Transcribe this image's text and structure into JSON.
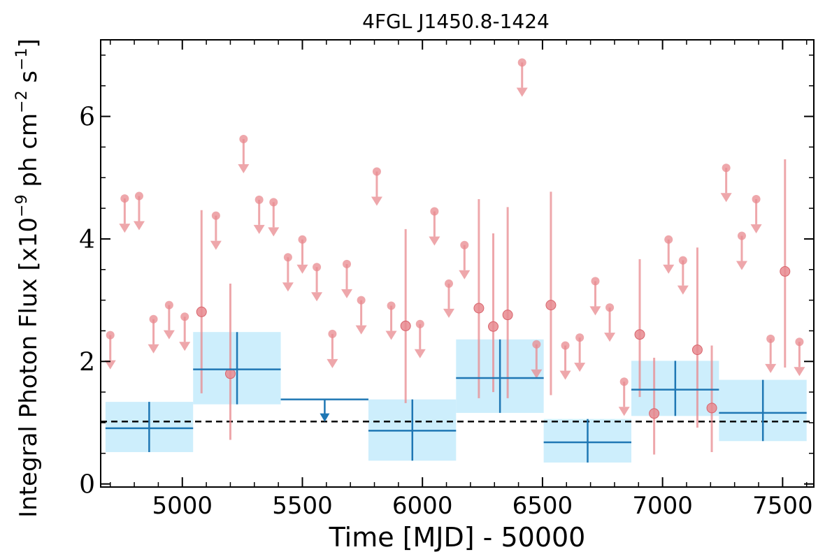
{
  "chart_data": {
    "type": "scatter",
    "title": "4FGL J1450.8-1424",
    "xlabel": "Time [MJD] - 50000",
    "ylabel": {
      "prefix": "Integral Photon Flux [x10",
      "exp1": "−9",
      "mid1": " ph cm",
      "exp2": "−2",
      "mid2": " s",
      "exp3": "−1",
      "suffix": "]"
    },
    "xlim": [
      4660,
      7630
    ],
    "ylim": [
      -0.05,
      7.25
    ],
    "xticks": [
      5000,
      5500,
      6000,
      6500,
      7000,
      7500
    ],
    "xtick_labels": [
      "5000",
      "5500",
      "6000",
      "6500",
      "7000",
      "7500"
    ],
    "yticks": [
      0,
      2,
      4,
      6
    ],
    "ytick_labels": [
      "0",
      "2",
      "4",
      "6"
    ],
    "grid": false,
    "colors": {
      "short_bin": "#e88a8f",
      "long_bin": "#1f77b4",
      "long_bin_band": "#cdeefc",
      "mean_line": "#000000"
    },
    "mean_flux": 1.02,
    "series": [
      {
        "bin": "short",
        "detections": [
          {
            "x": 5080,
            "y": 2.81,
            "lo": 1.48,
            "hi": 4.47
          },
          {
            "x": 5200,
            "y": 1.8,
            "lo": 0.72,
            "hi": 3.27
          },
          {
            "x": 5930,
            "y": 2.58,
            "lo": 1.32,
            "hi": 4.16
          },
          {
            "x": 6235,
            "y": 2.87,
            "lo": 1.4,
            "hi": 4.65
          },
          {
            "x": 6295,
            "y": 2.57,
            "lo": 1.5,
            "hi": 4.09
          },
          {
            "x": 6355,
            "y": 2.76,
            "lo": 1.4,
            "hi": 4.52
          },
          {
            "x": 6535,
            "y": 2.92,
            "lo": 1.45,
            "hi": 4.77
          },
          {
            "x": 6905,
            "y": 2.44,
            "lo": 1.42,
            "hi": 3.67
          },
          {
            "x": 6965,
            "y": 1.15,
            "lo": 0.48,
            "hi": 2.06
          },
          {
            "x": 7145,
            "y": 2.19,
            "lo": 0.92,
            "hi": 3.86
          },
          {
            "x": 7205,
            "y": 1.24,
            "lo": 0.52,
            "hi": 2.26
          },
          {
            "x": 7510,
            "y": 3.47,
            "lo": 1.9,
            "hi": 5.3
          }
        ],
        "upper_limits": [
          {
            "x": 4700,
            "y": 2.43
          },
          {
            "x": 4760,
            "y": 4.66
          },
          {
            "x": 4820,
            "y": 4.7
          },
          {
            "x": 4880,
            "y": 2.69
          },
          {
            "x": 4945,
            "y": 2.92
          },
          {
            "x": 5010,
            "y": 2.73
          },
          {
            "x": 5140,
            "y": 4.38
          },
          {
            "x": 5255,
            "y": 5.63
          },
          {
            "x": 5320,
            "y": 4.64
          },
          {
            "x": 5380,
            "y": 4.6
          },
          {
            "x": 5440,
            "y": 3.7
          },
          {
            "x": 5500,
            "y": 3.99
          },
          {
            "x": 5560,
            "y": 3.54
          },
          {
            "x": 5625,
            "y": 2.45
          },
          {
            "x": 5685,
            "y": 3.59
          },
          {
            "x": 5745,
            "y": 3.0
          },
          {
            "x": 5810,
            "y": 5.1
          },
          {
            "x": 5870,
            "y": 2.91
          },
          {
            "x": 5990,
            "y": 2.61
          },
          {
            "x": 6050,
            "y": 4.45
          },
          {
            "x": 6110,
            "y": 3.27
          },
          {
            "x": 6175,
            "y": 3.9
          },
          {
            "x": 6415,
            "y": 6.88
          },
          {
            "x": 6475,
            "y": 2.28
          },
          {
            "x": 6595,
            "y": 2.26
          },
          {
            "x": 6655,
            "y": 2.39
          },
          {
            "x": 6720,
            "y": 3.31
          },
          {
            "x": 6780,
            "y": 2.88
          },
          {
            "x": 6840,
            "y": 1.67
          },
          {
            "x": 7025,
            "y": 3.99
          },
          {
            "x": 7085,
            "y": 3.65
          },
          {
            "x": 7265,
            "y": 5.16
          },
          {
            "x": 7330,
            "y": 4.05
          },
          {
            "x": 7390,
            "y": 4.65
          },
          {
            "x": 7450,
            "y": 2.37
          },
          {
            "x": 7570,
            "y": 2.32
          }
        ]
      },
      {
        "bin": "long",
        "detections": [
          {
            "x": 4862,
            "x0": 4680,
            "x1": 5045,
            "y": 0.91,
            "lo": 0.52,
            "hi": 1.34
          },
          {
            "x": 5228,
            "x0": 5045,
            "x1": 5410,
            "y": 1.87,
            "lo": 1.3,
            "hi": 2.48
          },
          {
            "x": 5958,
            "x0": 5775,
            "x1": 6140,
            "y": 0.87,
            "lo": 0.38,
            "hi": 1.38
          },
          {
            "x": 6323,
            "x0": 6140,
            "x1": 6505,
            "y": 1.73,
            "lo": 1.16,
            "hi": 2.36
          },
          {
            "x": 6688,
            "x0": 6505,
            "x1": 6870,
            "y": 0.68,
            "lo": 0.35,
            "hi": 1.06
          },
          {
            "x": 7053,
            "x0": 6870,
            "x1": 7235,
            "y": 1.54,
            "lo": 1.11,
            "hi": 2.01
          },
          {
            "x": 7418,
            "x0": 7235,
            "x1": 7600,
            "y": 1.16,
            "lo": 0.7,
            "hi": 1.7
          }
        ],
        "upper_limits": [
          {
            "x": 5593,
            "x0": 5410,
            "x1": 5775,
            "y": 1.38
          }
        ]
      }
    ]
  }
}
